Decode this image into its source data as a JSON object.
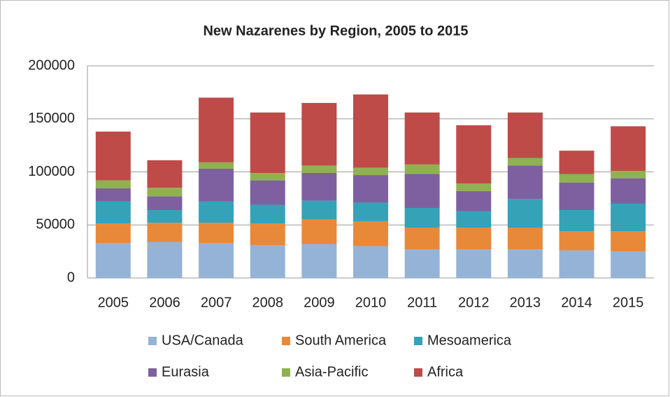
{
  "chart_data": {
    "type": "stacked_bar",
    "title": "New Nazarenes by Region, 2005 to 2015",
    "categories": [
      "2005",
      "2006",
      "2007",
      "2008",
      "2009",
      "2010",
      "2011",
      "2012",
      "2013",
      "2014",
      "2015"
    ],
    "series": [
      {
        "name": "USA/Canada",
        "color": "#95b3d7",
        "values": [
          33000,
          34000,
          33000,
          31000,
          32000,
          30000,
          27000,
          27000,
          27000,
          26000,
          25000
        ]
      },
      {
        "name": "South America",
        "color": "#e8893a",
        "values": [
          18500,
          18000,
          19000,
          20500,
          23000,
          23500,
          20500,
          20500,
          20500,
          18000,
          19000
        ]
      },
      {
        "name": "Mesoamerica",
        "color": "#35a2b8",
        "values": [
          20500,
          12000,
          20000,
          17500,
          18000,
          17500,
          18500,
          15500,
          27000,
          20000,
          26000
        ]
      },
      {
        "name": "Eurasia",
        "color": "#7e60a0",
        "values": [
          12500,
          13000,
          31000,
          23000,
          26000,
          26000,
          32000,
          19000,
          31500,
          26000,
          24000
        ]
      },
      {
        "name": "Asia-Pacific",
        "color": "#8fb250",
        "values": [
          7500,
          8000,
          6000,
          7000,
          7000,
          7000,
          9000,
          7000,
          7000,
          8000,
          7000
        ]
      },
      {
        "name": "Africa",
        "color": "#be4b48",
        "values": [
          46000,
          26000,
          61000,
          57000,
          59000,
          69000,
          49000,
          55000,
          43000,
          22000,
          42000
        ]
      }
    ],
    "ylim": [
      0,
      200000
    ],
    "yticks": [
      0,
      50000,
      100000,
      150000,
      200000
    ],
    "grid": true
  }
}
